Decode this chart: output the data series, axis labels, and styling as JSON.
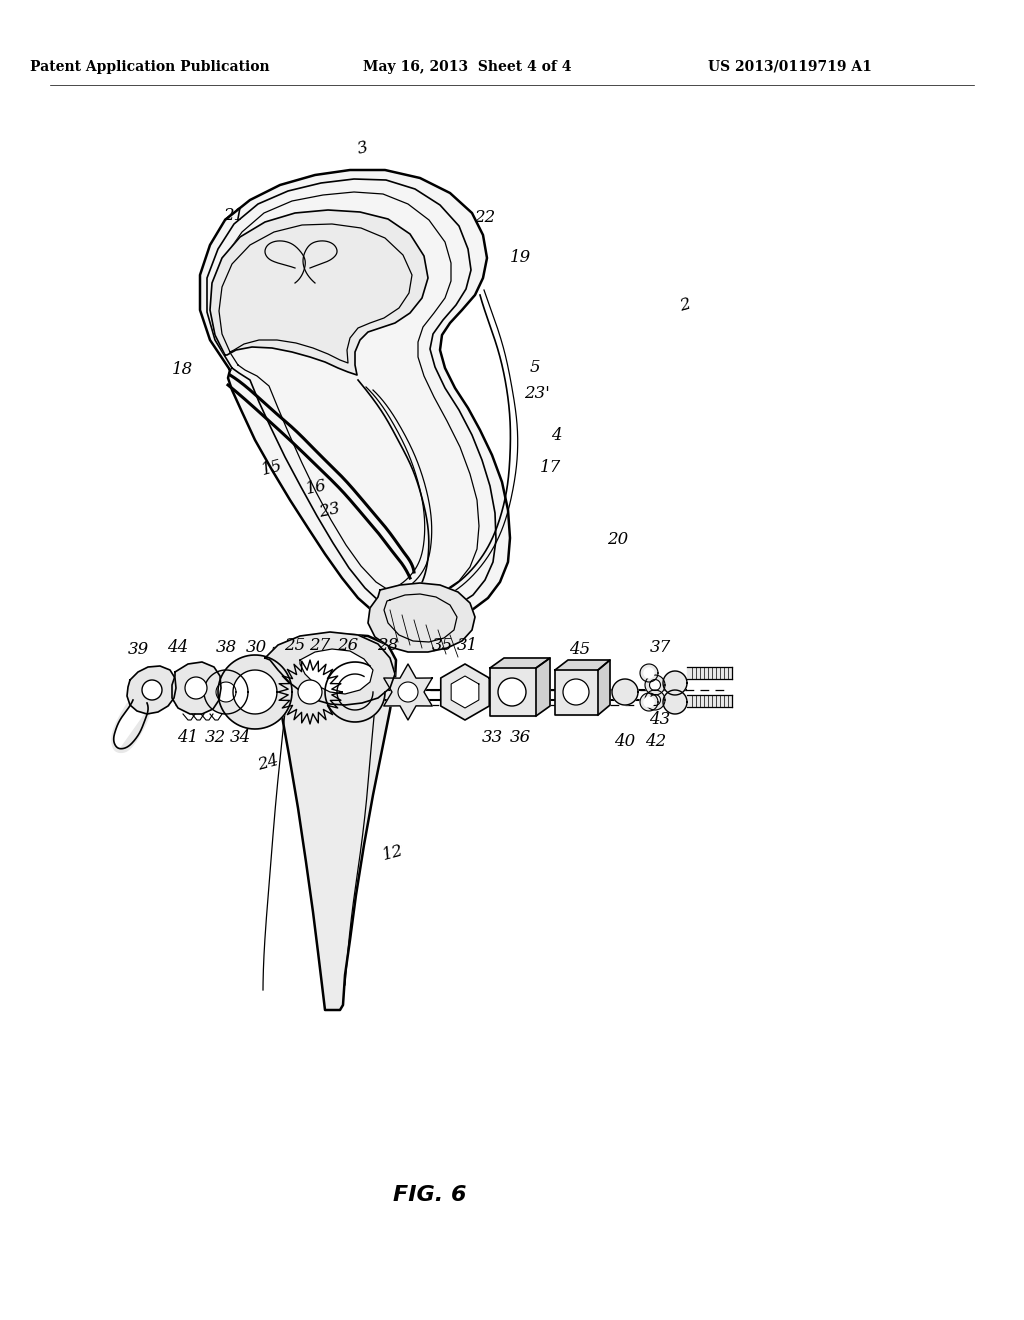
{
  "background_color": "#ffffff",
  "header_left": "Patent Application Publication",
  "header_center": "May 16, 2013  Sheet 4 of 4",
  "header_right": "US 2013/0119719 A1",
  "figure_label": "FIG. 6",
  "header_fontsize": 10,
  "figure_label_fontsize": 16,
  "label_fontsize": 12,
  "saddle_color": "#f5f5f5",
  "part_color": "#e8e8e8",
  "dark_part": "#c8c8c8"
}
